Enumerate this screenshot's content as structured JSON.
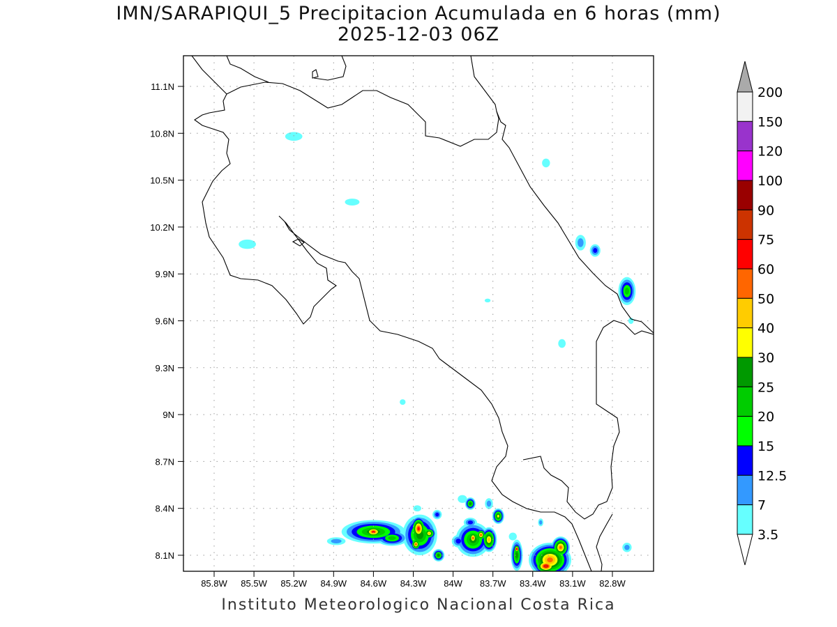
{
  "title": {
    "line1": "IMN/SARAPIQUI_5 Precipitacion Acumulada en 6 horas (mm)",
    "line2": "2025-12-03 06Z"
  },
  "footer": "Instituto Meteorologico Nacional Costa Rica",
  "map_data": {
    "lon_range_w": [
      86.03,
      82.49
    ],
    "lat_range_n": [
      8.0,
      11.3
    ],
    "lon_ticks": [
      85.8,
      85.5,
      85.2,
      84.9,
      84.6,
      84.3,
      84.0,
      83.7,
      83.4,
      83.1,
      82.8
    ],
    "lon_tick_labels": [
      "85.8W",
      "85.5W",
      "85.2W",
      "84.9W",
      "84.6W",
      "84.3W",
      "84W",
      "83.7W",
      "83.4W",
      "83.1W",
      "82.8W"
    ],
    "lat_ticks": [
      11.1,
      10.8,
      10.5,
      10.2,
      9.9,
      9.6,
      9.3,
      9.0,
      8.7,
      8.4,
      8.1
    ],
    "lat_tick_labels": [
      "11.1N",
      "10.8N",
      "10.5N",
      "10.2N",
      "9.9N",
      "9.6N",
      "9.3N",
      "9N",
      "8.7N",
      "8.4N",
      "8.1N"
    ],
    "grid": "dotted",
    "units": "mm",
    "precip_cells": [
      {
        "lon": 85.2,
        "lat": 10.78,
        "rx": 0.065,
        "ry": 0.028,
        "max": 3.5
      },
      {
        "lon": 84.76,
        "lat": 10.36,
        "rx": 0.055,
        "ry": 0.022,
        "max": 3.5
      },
      {
        "lon": 85.55,
        "lat": 10.09,
        "rx": 0.065,
        "ry": 0.03,
        "max": 3.5
      },
      {
        "lon": 83.3,
        "lat": 10.61,
        "rx": 0.03,
        "ry": 0.028,
        "max": 3.5
      },
      {
        "lon": 83.04,
        "lat": 10.1,
        "rx": 0.04,
        "ry": 0.05,
        "max": 7
      },
      {
        "lon": 82.93,
        "lat": 10.05,
        "rx": 0.04,
        "ry": 0.04,
        "max": 12.5
      },
      {
        "lon": 82.69,
        "lat": 9.79,
        "rx": 0.065,
        "ry": 0.09,
        "max": 20
      },
      {
        "lon": 83.18,
        "lat": 9.455,
        "rx": 0.028,
        "ry": 0.028,
        "max": 3.5
      },
      {
        "lon": 82.66,
        "lat": 9.6,
        "rx": 0.02,
        "ry": 0.02,
        "max": 3.5
      },
      {
        "lon": 84.38,
        "lat": 9.08,
        "rx": 0.022,
        "ry": 0.018,
        "max": 3.5
      },
      {
        "lon": 83.74,
        "lat": 9.73,
        "rx": 0.022,
        "ry": 0.012,
        "max": 3.5
      },
      {
        "lon": 82.69,
        "lat": 8.15,
        "rx": 0.035,
        "ry": 0.03,
        "max": 7
      },
      {
        "lon": 84.88,
        "lat": 8.19,
        "rx": 0.07,
        "ry": 0.025,
        "max": 7
      },
      {
        "lon": 84.6,
        "lat": 8.25,
        "rx": 0.24,
        "ry": 0.075,
        "max": 25
      },
      {
        "lon": 84.6,
        "lat": 8.25,
        "rx": 0.08,
        "ry": 0.04,
        "max": 60
      },
      {
        "lon": 84.46,
        "lat": 8.21,
        "rx": 0.12,
        "ry": 0.05,
        "max": 20
      },
      {
        "lon": 84.25,
        "lat": 8.23,
        "rx": 0.13,
        "ry": 0.13,
        "max": 25
      },
      {
        "lon": 84.26,
        "lat": 8.27,
        "rx": 0.06,
        "ry": 0.08,
        "max": 60
      },
      {
        "lon": 84.28,
        "lat": 8.17,
        "rx": 0.04,
        "ry": 0.04,
        "max": 50
      },
      {
        "lon": 84.18,
        "lat": 8.24,
        "rx": 0.05,
        "ry": 0.04,
        "max": 40
      },
      {
        "lon": 84.11,
        "lat": 8.1,
        "rx": 0.045,
        "ry": 0.04,
        "max": 25
      },
      {
        "lon": 84.12,
        "lat": 8.36,
        "rx": 0.035,
        "ry": 0.03,
        "max": 12.5
      },
      {
        "lon": 84.27,
        "lat": 8.4,
        "rx": 0.03,
        "ry": 0.02,
        "max": 3.5
      },
      {
        "lon": 83.96,
        "lat": 8.19,
        "rx": 0.05,
        "ry": 0.04,
        "max": 12.5
      },
      {
        "lon": 83.85,
        "lat": 8.2,
        "rx": 0.13,
        "ry": 0.11,
        "max": 25
      },
      {
        "lon": 83.85,
        "lat": 8.21,
        "rx": 0.04,
        "ry": 0.05,
        "max": 50
      },
      {
        "lon": 83.73,
        "lat": 8.2,
        "rx": 0.06,
        "ry": 0.08,
        "max": 40
      },
      {
        "lon": 83.79,
        "lat": 8.23,
        "rx": 0.04,
        "ry": 0.04,
        "max": 50
      },
      {
        "lon": 83.87,
        "lat": 8.31,
        "rx": 0.05,
        "ry": 0.03,
        "max": 12.5
      },
      {
        "lon": 83.87,
        "lat": 8.43,
        "rx": 0.04,
        "ry": 0.04,
        "max": 25
      },
      {
        "lon": 83.73,
        "lat": 8.43,
        "rx": 0.03,
        "ry": 0.035,
        "max": 7
      },
      {
        "lon": 83.66,
        "lat": 8.35,
        "rx": 0.045,
        "ry": 0.05,
        "max": 30
      },
      {
        "lon": 83.93,
        "lat": 8.46,
        "rx": 0.035,
        "ry": 0.025,
        "max": 3.5
      },
      {
        "lon": 83.52,
        "lat": 8.1,
        "rx": 0.045,
        "ry": 0.1,
        "max": 25
      },
      {
        "lon": 83.52,
        "lat": 8.14,
        "rx": 0.025,
        "ry": 0.03,
        "max": 60
      },
      {
        "lon": 83.55,
        "lat": 8.22,
        "rx": 0.03,
        "ry": 0.025,
        "max": 3.5
      },
      {
        "lon": 83.27,
        "lat": 8.07,
        "rx": 0.16,
        "ry": 0.11,
        "max": 50
      },
      {
        "lon": 83.3,
        "lat": 8.03,
        "rx": 0.09,
        "ry": 0.05,
        "max": 75
      },
      {
        "lon": 83.19,
        "lat": 8.15,
        "rx": 0.07,
        "ry": 0.07,
        "max": 50
      },
      {
        "lon": 83.34,
        "lat": 8.31,
        "rx": 0.02,
        "ry": 0.025,
        "max": 7
      }
    ]
  },
  "colorbar": {
    "labels": [
      "200",
      "150",
      "120",
      "100",
      "90",
      "75",
      "60",
      "50",
      "40",
      "30",
      "25",
      "20",
      "15",
      "12.5",
      "7",
      "3.5"
    ],
    "levels": [
      3.5,
      7,
      12.5,
      15,
      20,
      25,
      30,
      40,
      50,
      60,
      75,
      90,
      100,
      120,
      150,
      200
    ],
    "colors": [
      "#66ffff",
      "#3399ff",
      "#0000ff",
      "#00ff00",
      "#00cc00",
      "#009900",
      "#ffff00",
      "#ffcc00",
      "#ff6600",
      "#ff0000",
      "#cc3300",
      "#990000",
      "#ff00ff",
      "#9933cc",
      "#f2f2f2"
    ],
    "over_color": "#aaaaaa",
    "under_color": "#ffffff"
  }
}
